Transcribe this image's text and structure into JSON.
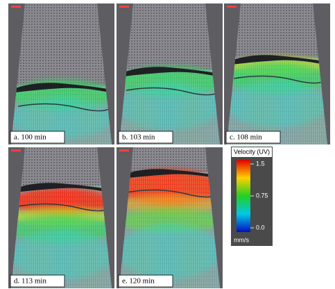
{
  "panels": [
    {
      "label": "a. 100 min"
    },
    {
      "label": "b. 103 min"
    },
    {
      "label": "c. 108 min"
    },
    {
      "label": "d. 113 min"
    },
    {
      "label": "e. 120 min"
    }
  ],
  "legend": {
    "title": "Velocity (UV)",
    "ticks": [
      1.5,
      0.75,
      {
        "value": 0,
        "label": "0.0"
      }
    ],
    "unit": "mm/s"
  }
}
